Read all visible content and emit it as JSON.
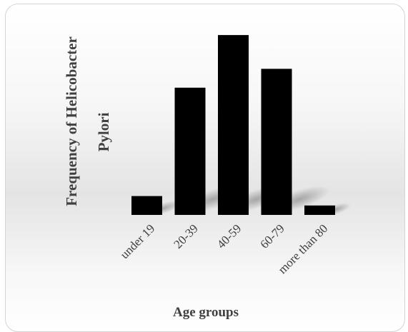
{
  "chart_data": {
    "type": "bar",
    "categories": [
      "under 19",
      "20-39",
      "40-59",
      "60-79",
      "more than 80"
    ],
    "values": [
      24,
      162,
      229,
      186,
      12
    ],
    "xlabel": "Age groups",
    "ylabel": "Frequency of Helicobacter Pylori",
    "ylabel_lines": [
      "Frequency of Helicobacter",
      "Pylori"
    ],
    "ylim": [
      0,
      250
    ],
    "grid": false,
    "bar_color": "#000000",
    "text_color": "#404040"
  }
}
